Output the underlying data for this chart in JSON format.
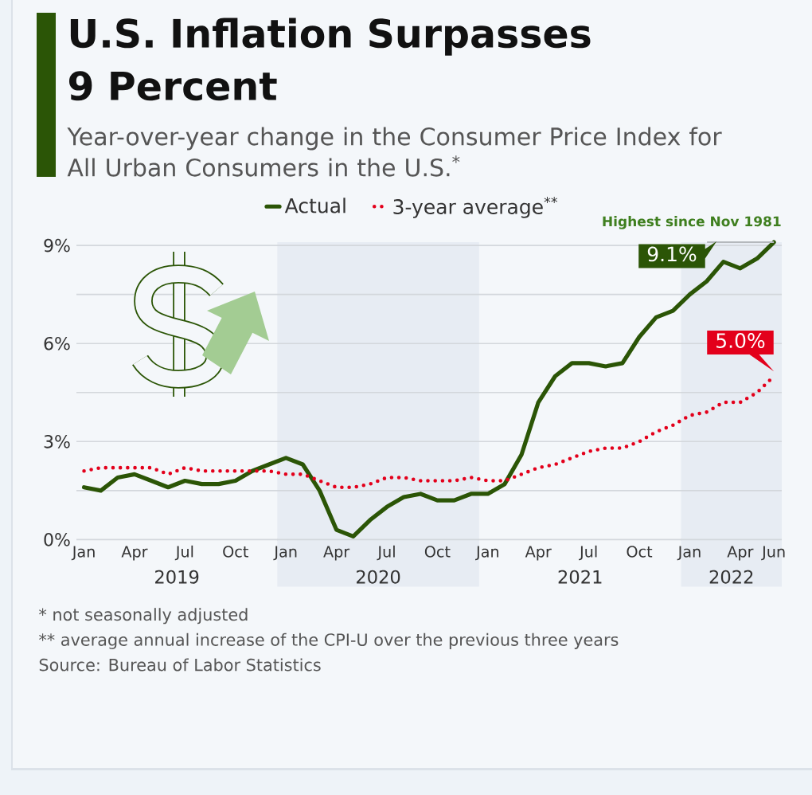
{
  "chart_data": {
    "type": "line",
    "title": "U.S. Inflation Surpasses 9 Percent",
    "subtitle": "Year-over-year change in the Consumer Price Index for All Urban Consumers in the U.S.$^{*}$",
    "x": [
      "2019-01",
      "2019-02",
      "2019-03",
      "2019-04",
      "2019-05",
      "2019-06",
      "2019-07",
      "2019-08",
      "2019-09",
      "2019-10",
      "2019-11",
      "2019-12",
      "2020-01",
      "2020-02",
      "2020-03",
      "2020-04",
      "2020-05",
      "2020-06",
      "2020-07",
      "2020-08",
      "2020-09",
      "2020-10",
      "2020-11",
      "2020-12",
      "2021-01",
      "2021-02",
      "2021-03",
      "2021-04",
      "2021-05",
      "2021-06",
      "2021-07",
      "2021-08",
      "2021-09",
      "2021-10",
      "2021-11",
      "2021-12",
      "2022-01",
      "2022-02",
      "2022-03",
      "2022-04",
      "2022-05",
      "2022-06"
    ],
    "xlim": [
      "2018-12-18",
      "2022-06-15"
    ],
    "xticks": [
      {
        "value": "2019-01",
        "label": "Jan"
      },
      {
        "value": "2019-04",
        "label": "Apr"
      },
      {
        "value": "2019-07",
        "label": "Jul"
      },
      {
        "value": "2019-10",
        "label": "Oct"
      },
      {
        "value": "2020-01",
        "label": "Jan"
      },
      {
        "value": "2020-04",
        "label": "Apr"
      },
      {
        "value": "2020-07",
        "label": "Jul"
      },
      {
        "value": "2020-10",
        "label": "Oct"
      },
      {
        "value": "2021-01",
        "label": "Jan"
      },
      {
        "value": "2021-04",
        "label": "Apr"
      },
      {
        "value": "2021-07",
        "label": "Jul"
      },
      {
        "value": "2021-10",
        "label": "Oct"
      },
      {
        "value": "2022-01",
        "label": "Jan"
      },
      {
        "value": "2022-04",
        "label": "Apr"
      },
      {
        "value": "2022-06",
        "label": "Jun"
      }
    ],
    "ylim": [
      0,
      9.1
    ],
    "yticks": [
      {
        "value": 0,
        "label": "0%"
      },
      {
        "value": 1.5,
        "label": null
      },
      {
        "value": 3,
        "label": "3%"
      },
      {
        "value": 4.5,
        "label": null
      },
      {
        "value": 6,
        "label": "6%"
      },
      {
        "value": 7.5,
        "label": null
      },
      {
        "value": 9,
        "label": "9%"
      }
    ],
    "grid": "y",
    "legend": "top",
    "series": [
      {
        "name": "Actual",
        "color": "#2b5506",
        "line_style": "solid",
        "values": [
          1.6,
          1.5,
          1.9,
          2.0,
          1.8,
          1.6,
          1.8,
          1.7,
          1.7,
          1.8,
          2.1,
          2.3,
          2.5,
          2.3,
          1.5,
          0.3,
          0.1,
          0.6,
          1.0,
          1.3,
          1.4,
          1.2,
          1.2,
          1.4,
          1.4,
          1.7,
          2.6,
          4.2,
          5.0,
          5.4,
          5.4,
          5.3,
          5.4,
          6.2,
          6.8,
          7.0,
          7.5,
          7.9,
          8.5,
          8.3,
          8.6,
          9.1
        ],
        "value_labels": [
          null,
          null,
          null,
          null,
          null,
          null,
          null,
          null,
          null,
          null,
          null,
          null,
          null,
          null,
          null,
          null,
          null,
          null,
          null,
          null,
          null,
          null,
          null,
          null,
          null,
          null,
          null,
          null,
          null,
          null,
          null,
          null,
          null,
          null,
          null,
          null,
          null,
          null,
          null,
          null,
          null,
          "9.1%"
        ]
      },
      {
        "name": "3-year average$^{**}$",
        "color": "#e3001b",
        "line_style": "dotted",
        "values": [
          2.1,
          2.2,
          2.2,
          2.2,
          2.2,
          2.0,
          2.2,
          2.1,
          2.1,
          2.1,
          2.1,
          2.1,
          2.0,
          2.0,
          1.8,
          1.6,
          1.6,
          1.7,
          1.9,
          1.9,
          1.8,
          1.8,
          1.8,
          1.9,
          1.8,
          1.8,
          2.0,
          2.2,
          2.3,
          2.5,
          2.7,
          2.8,
          2.8,
          3.0,
          3.3,
          3.5,
          3.8,
          3.9,
          4.2,
          4.2,
          4.5,
          5.0
        ],
        "value_labels": [
          null,
          null,
          null,
          null,
          null,
          null,
          null,
          null,
          null,
          null,
          null,
          null,
          null,
          null,
          null,
          null,
          null,
          null,
          null,
          null,
          null,
          null,
          null,
          null,
          null,
          null,
          null,
          null,
          null,
          null,
          null,
          null,
          null,
          null,
          null,
          null,
          null,
          null,
          null,
          null,
          null,
          "5.0%"
        ]
      }
    ],
    "bands": [
      {
        "axis": "x",
        "from": "2018-12-18",
        "to": "2019-12-16",
        "label": "2019",
        "color": "#f4f7fa"
      },
      {
        "axis": "x",
        "from": "2019-12-16",
        "to": "2020-12-16",
        "label": "2020",
        "color": "#e7ecf3"
      },
      {
        "axis": "x",
        "from": "2020-12-16",
        "to": "2021-12-16",
        "label": "2021",
        "color": "#f4f7fa"
      },
      {
        "axis": "x",
        "from": "2021-12-16",
        "to": "2022-06-15",
        "label": "2022",
        "color": "#e7ecf3"
      }
    ],
    "annotations": [
      {
        "text": "Highest since Nov 1981",
        "x": "2022-06",
        "y": 9.1
      },
      "* not seasonally adjusted",
      "** average annual increase of the CPI-U over the previous three years",
      "Source: Bureau of Labor Statistics"
    ]
  }
}
